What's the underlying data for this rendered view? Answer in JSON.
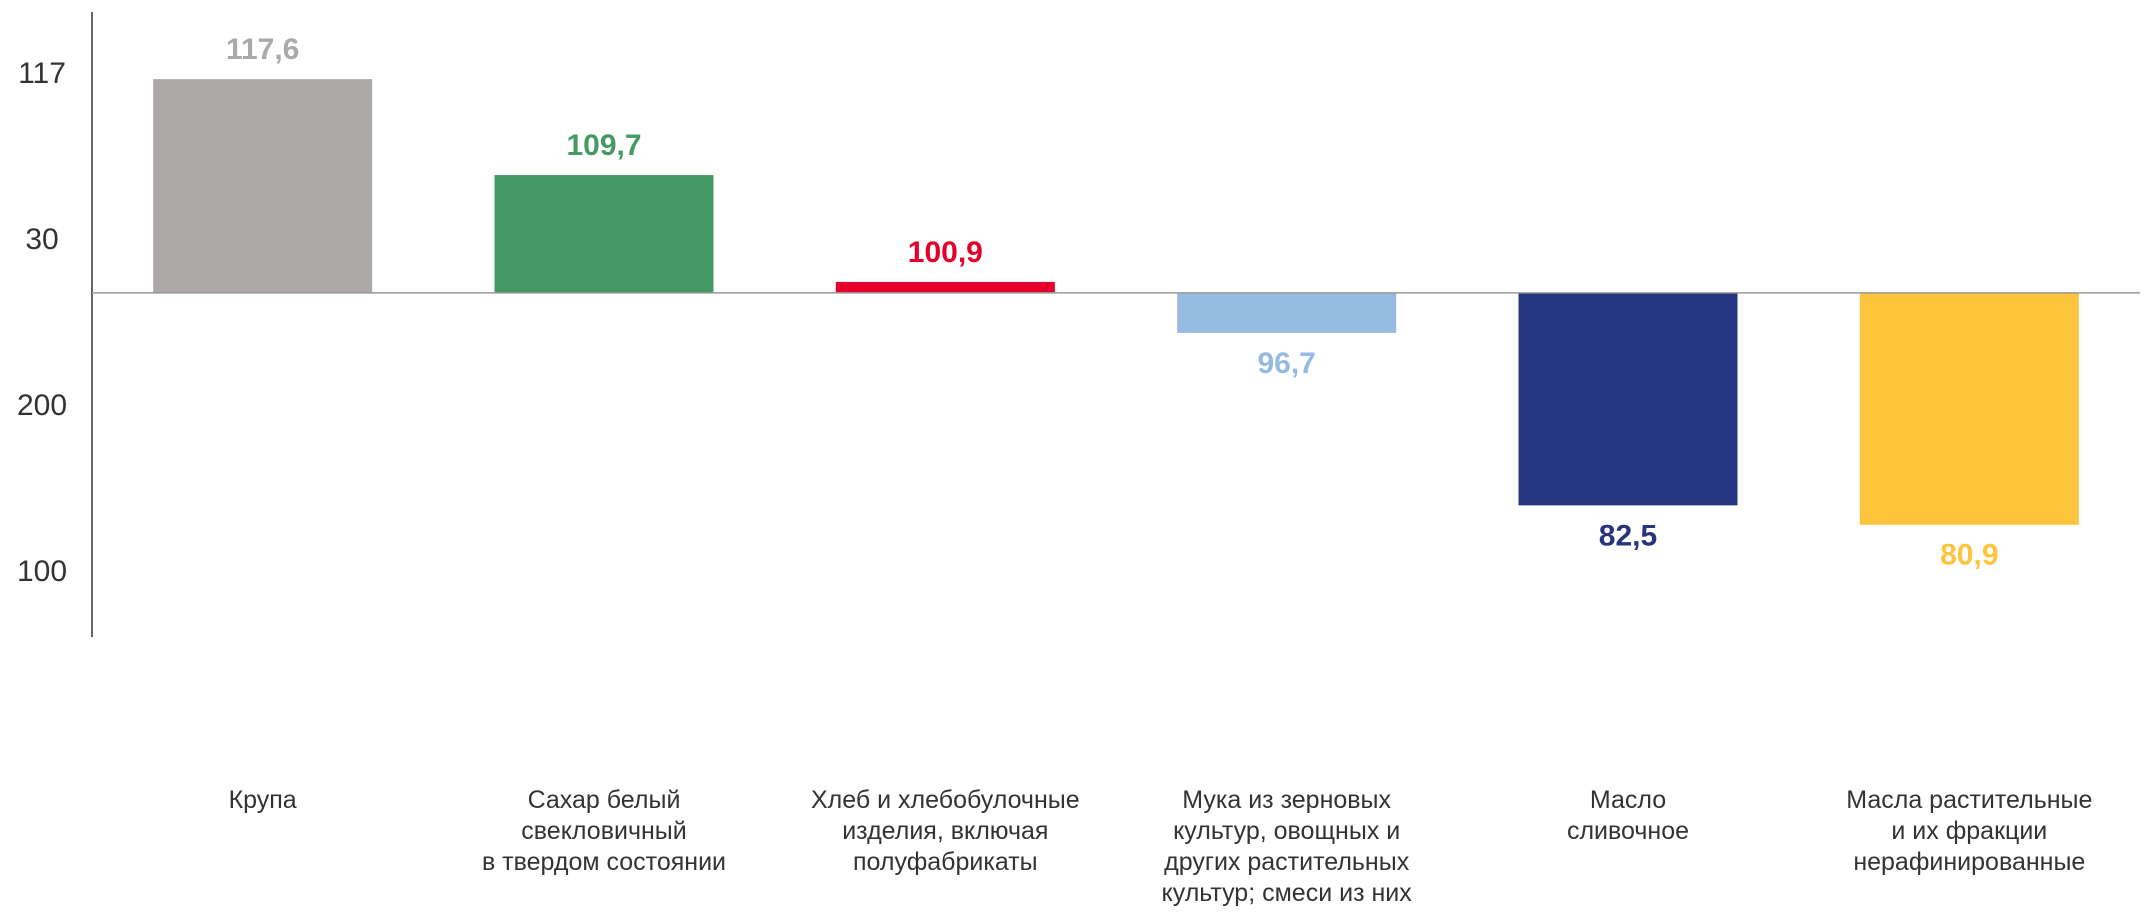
{
  "chart_data": {
    "type": "bar",
    "categories": [
      "Крупа",
      "Сахар белый\nсвекловичный\nв твердом состоянии",
      "Хлеб и хлебобулочные\nизделия, включая\nполуфабрикаты",
      "Мука из зерновых\nкультур, овощных и\nдругих растительных\nкультур; смеси из них",
      "Масло\nсливочное",
      "Масла растительные\nи их фракции\nнерафинированные"
    ],
    "values": [
      117.6,
      109.7,
      100.9,
      96.7,
      82.5,
      80.9
    ],
    "value_labels": [
      "117,6",
      "109,7",
      "100,9",
      "96,7",
      "82,5",
      "80,9"
    ],
    "colors": [
      "#aca9a8",
      "#459a64",
      "#e4002b",
      "#95bbe0",
      "#263580",
      "#fdc43c"
    ],
    "baseline": 100,
    "ylim": [
      78,
      120
    ],
    "y_axis_labels": [
      "117",
      "30",
      "200",
      "100"
    ]
  }
}
